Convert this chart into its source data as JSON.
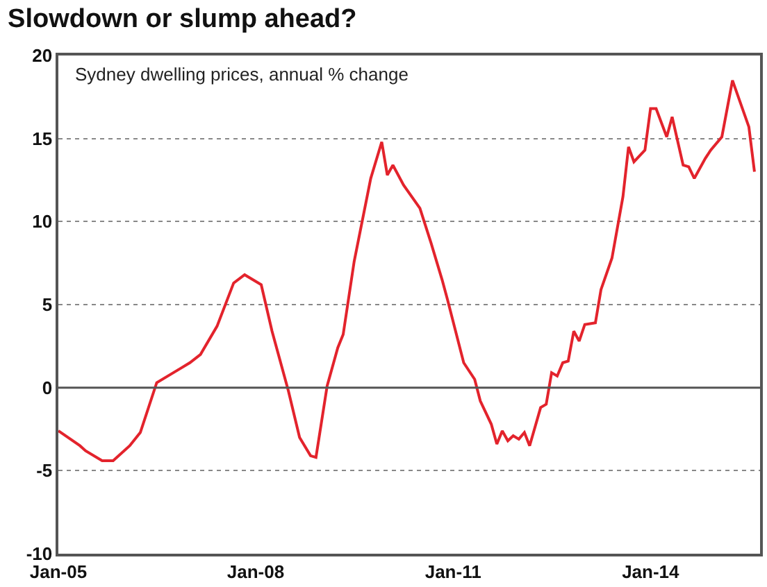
{
  "chart_data": {
    "type": "line",
    "title": "Slowdown or slump ahead?",
    "subtitle": "Sydney dwelling prices, annual % change",
    "x": [
      "2005-01",
      "2005-05",
      "2005-06",
      "2005-09",
      "2005-11",
      "2006-02",
      "2006-04",
      "2006-07",
      "2006-11",
      "2007-01",
      "2007-03",
      "2007-06",
      "2007-09",
      "2007-11",
      "2008-02",
      "2008-04",
      "2008-07",
      "2008-09",
      "2008-11",
      "2008-12",
      "2009-02",
      "2009-04",
      "2009-05",
      "2009-07",
      "2009-10",
      "2009-12",
      "2010-01",
      "2010-02",
      "2010-04",
      "2010-07",
      "2010-09",
      "2010-11",
      "2010-12",
      "2011-03",
      "2011-05",
      "2011-06",
      "2011-08",
      "2011-09",
      "2011-10",
      "2011-11",
      "2011-12",
      "2012-01",
      "2012-02",
      "2012-03",
      "2012-05",
      "2012-06",
      "2012-07",
      "2012-08",
      "2012-09",
      "2012-10",
      "2012-11",
      "2012-12",
      "2013-01",
      "2013-03",
      "2013-04",
      "2013-06",
      "2013-08",
      "2013-09",
      "2013-10",
      "2013-12",
      "2014-01",
      "2014-02",
      "2014-04",
      "2014-05",
      "2014-07",
      "2014-08",
      "2014-09",
      "2014-11",
      "2014-12",
      "2015-02",
      "2015-04",
      "2015-07",
      "2015-08"
    ],
    "series": [
      {
        "color": "#e3232c",
        "values": [
          -2.6,
          -3.5,
          -3.8,
          -4.4,
          -4.4,
          -3.5,
          -2.7,
          0.3,
          1.1,
          1.5,
          2.0,
          3.7,
          6.3,
          6.8,
          6.2,
          3.4,
          -0.2,
          -3.0,
          -4.1,
          -4.2,
          0.1,
          2.4,
          3.2,
          7.6,
          12.6,
          14.8,
          12.8,
          13.4,
          12.2,
          10.8,
          8.7,
          6.5,
          5.3,
          1.5,
          0.5,
          -0.8,
          -2.2,
          -3.4,
          -2.6,
          -3.2,
          -2.9,
          -3.1,
          -2.7,
          -3.5,
          -1.2,
          -1.0,
          0.9,
          0.7,
          1.5,
          1.6,
          3.4,
          2.8,
          3.8,
          3.9,
          5.9,
          7.8,
          11.5,
          14.5,
          13.6,
          14.3,
          16.8,
          16.8,
          15.1,
          16.3,
          13.4,
          13.3,
          12.6,
          13.8,
          14.3,
          15.1,
          18.5,
          15.7,
          13.0
        ]
      }
    ],
    "xlim": [
      "2005-01",
      "2015-09"
    ],
    "xticks": [
      {
        "value": "2005-01",
        "label": "Jan-05"
      },
      {
        "value": "2008-01",
        "label": "Jan-08"
      },
      {
        "value": "2011-01",
        "label": "Jan-11"
      },
      {
        "value": "2014-01",
        "label": "Jan-14"
      }
    ],
    "ylim": [
      -10,
      20
    ],
    "yticks": [
      -10,
      -5,
      0,
      5,
      10,
      15,
      20
    ],
    "grid": "y",
    "line_style": "solid",
    "ref_lines": [
      {
        "axis": "y",
        "value": 0,
        "color": "#555555",
        "line_style": "solid"
      }
    ]
  }
}
